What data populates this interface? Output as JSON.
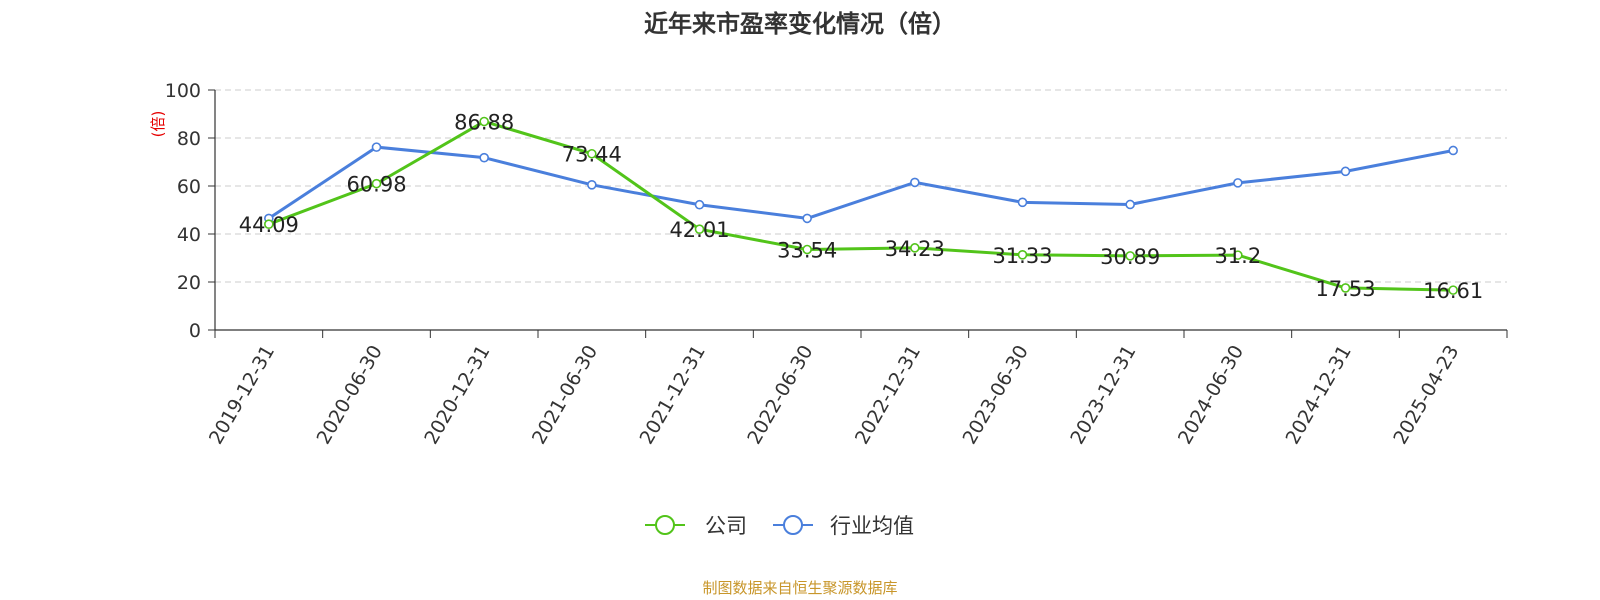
{
  "chart_data": {
    "type": "line",
    "title": "近年来市盈率变化情况（倍）",
    "ylabel": "(倍)",
    "xlabel": "",
    "ylim": [
      0,
      100
    ],
    "yticks": [
      0,
      20,
      40,
      60,
      80,
      100
    ],
    "grid": true,
    "legend_position": "bottom",
    "categories": [
      "2019-12-31",
      "2020-06-30",
      "2020-12-31",
      "2021-06-30",
      "2021-12-31",
      "2022-06-30",
      "2022-12-31",
      "2023-06-30",
      "2023-12-31",
      "2024-06-30",
      "2024-12-31",
      "2025-04-23"
    ],
    "series": [
      {
        "name": "公司",
        "color": "#52c41a",
        "values": [
          44.09,
          60.98,
          86.88,
          73.44,
          42.01,
          33.54,
          34.23,
          31.33,
          30.89,
          31.2,
          17.53,
          16.61
        ],
        "labels": [
          "44.09",
          "60.98",
          "86.88",
          "73.44",
          "42.01",
          "33.54",
          "34.23",
          "31.33",
          "30.89",
          "31.2",
          "17.53",
          "16.61"
        ]
      },
      {
        "name": "行业均值",
        "color": "#4a7fdc",
        "values": [
          46.5,
          76.2,
          71.8,
          60.5,
          52.2,
          46.5,
          61.5,
          53.2,
          52.3,
          61.3,
          66.1,
          74.8
        ]
      }
    ]
  },
  "source_text": "制图数据来自恒生聚源数据库"
}
